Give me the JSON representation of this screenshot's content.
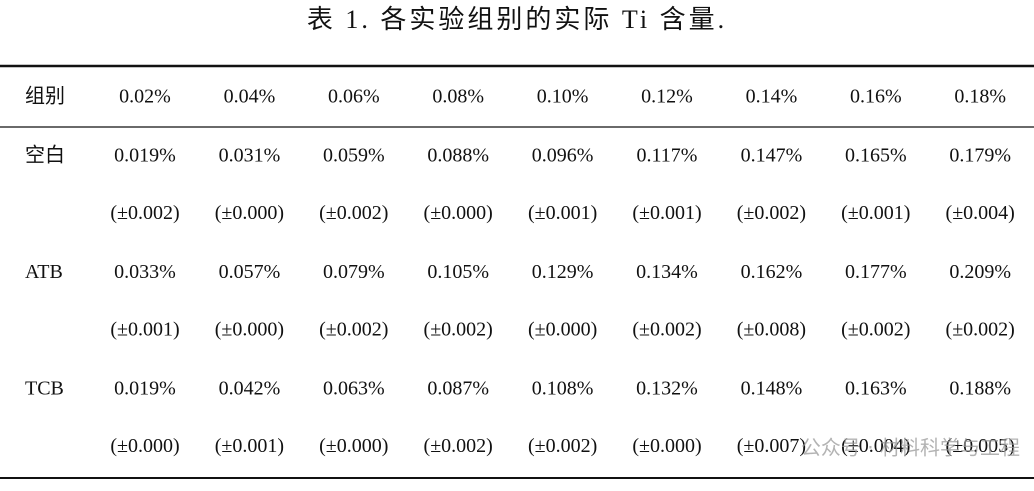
{
  "title": "表 1. 各实验组别的实际 Ti 含量.",
  "table": {
    "header": [
      "组别",
      "0.02%",
      "0.04%",
      "0.06%",
      "0.08%",
      "0.10%",
      "0.12%",
      "0.14%",
      "0.16%",
      "0.18%"
    ],
    "groups": [
      {
        "name": "空白",
        "values": [
          "0.019%",
          "0.031%",
          "0.059%",
          "0.088%",
          "0.096%",
          "0.117%",
          "0.147%",
          "0.165%",
          "0.179%"
        ],
        "errors": [
          "(±0.002)",
          "(±0.000)",
          "(±0.002)",
          "(±0.000)",
          "(±0.001)",
          "(±0.001)",
          "(±0.002)",
          "(±0.001)",
          "(±0.004)"
        ]
      },
      {
        "name": "ATB",
        "values": [
          "0.033%",
          "0.057%",
          "0.079%",
          "0.105%",
          "0.129%",
          "0.134%",
          "0.162%",
          "0.177%",
          "0.209%"
        ],
        "errors": [
          "(±0.001)",
          "(±0.000)",
          "(±0.002)",
          "(±0.002)",
          "(±0.000)",
          "(±0.002)",
          "(±0.008)",
          "(±0.002)",
          "(±0.002)"
        ]
      },
      {
        "name": "TCB",
        "values": [
          "0.019%",
          "0.042%",
          "0.063%",
          "0.087%",
          "0.108%",
          "0.132%",
          "0.148%",
          "0.163%",
          "0.188%"
        ],
        "errors": [
          "(±0.000)",
          "(±0.001)",
          "(±0.000)",
          "(±0.002)",
          "(±0.002)",
          "(±0.000)",
          "(±0.007)",
          "(±0.004)",
          "(±0.005)"
        ]
      }
    ]
  },
  "watermark": "公众号 · 材料科学与工程"
}
